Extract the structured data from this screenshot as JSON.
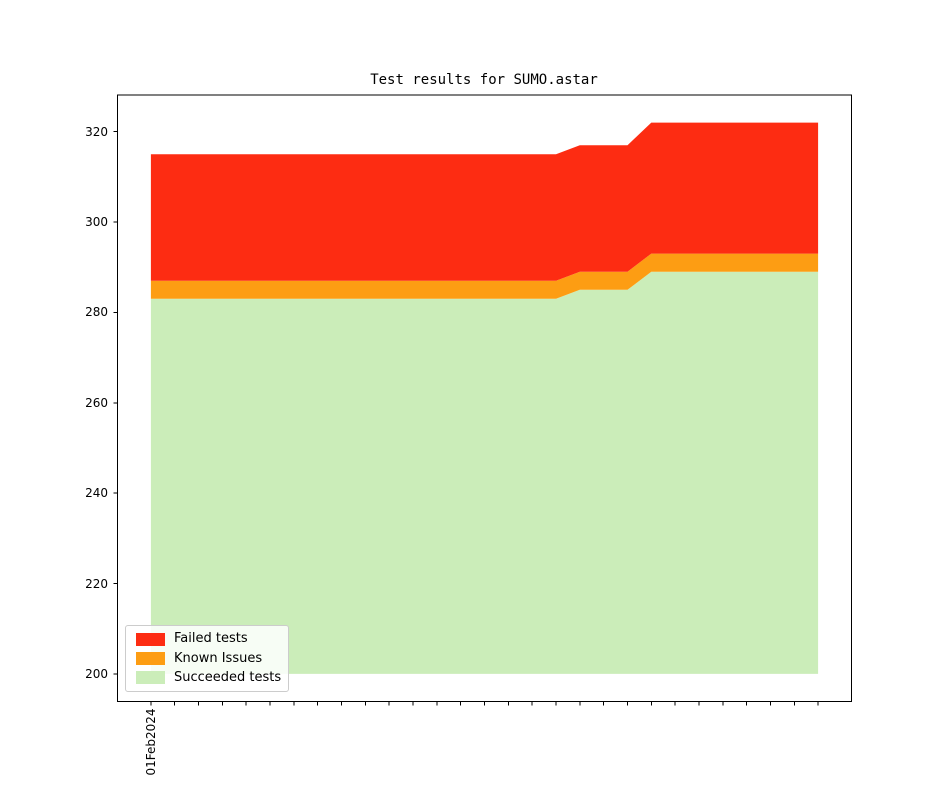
{
  "title": "Test results for SUMO.astar",
  "axis": {
    "x_tick_label": "01Feb2024",
    "y_tick_labels": [
      "200",
      "220",
      "240",
      "260",
      "280",
      "300",
      "320"
    ]
  },
  "legend": {
    "entries": [
      {
        "label": "Failed tests",
        "color": "#fd2c12"
      },
      {
        "label": "Known Issues",
        "color": "#fd9d13"
      },
      {
        "label": "Succeeded tests",
        "color": "#cbedb9"
      }
    ]
  },
  "chart_data": {
    "type": "area",
    "stacked": true,
    "title": "Test results for SUMO.astar",
    "legend_position": "lower left",
    "grid": false,
    "baseline": 200,
    "x": [
      1,
      2,
      3,
      4,
      5,
      6,
      7,
      8,
      9,
      10,
      11,
      12,
      13,
      14,
      15,
      16,
      17,
      18,
      19,
      20,
      21,
      22,
      23,
      24,
      25,
      26,
      27,
      28,
      29
    ],
    "x_tick_labels_shown": [
      "01Feb2024"
    ],
    "x_ticks_per_day": true,
    "xlim": [
      -0.4,
      30.4
    ],
    "yticks": [
      200,
      220,
      240,
      260,
      280,
      300,
      320
    ],
    "ylim": [
      193.9,
      328.1
    ],
    "series": [
      {
        "name": "Succeeded tests",
        "color": "#cbedb9",
        "values": [
          283,
          283,
          283,
          283,
          283,
          283,
          283,
          283,
          283,
          283,
          283,
          283,
          283,
          283,
          283,
          283,
          283,
          283,
          285,
          285,
          285,
          289,
          289,
          289,
          289,
          289,
          289,
          289,
          289
        ]
      },
      {
        "name": "Known Issues",
        "color": "#fd9d13",
        "values": [
          4,
          4,
          4,
          4,
          4,
          4,
          4,
          4,
          4,
          4,
          4,
          4,
          4,
          4,
          4,
          4,
          4,
          4,
          4,
          4,
          4,
          4,
          4,
          4,
          4,
          4,
          4,
          4,
          4
        ]
      },
      {
        "name": "Failed tests",
        "color": "#fd2c12",
        "values": [
          28,
          28,
          28,
          28,
          28,
          28,
          28,
          28,
          28,
          28,
          28,
          28,
          28,
          28,
          28,
          28,
          28,
          28,
          28,
          28,
          28,
          29,
          29,
          29,
          29,
          29,
          29,
          29,
          29
        ]
      }
    ]
  }
}
